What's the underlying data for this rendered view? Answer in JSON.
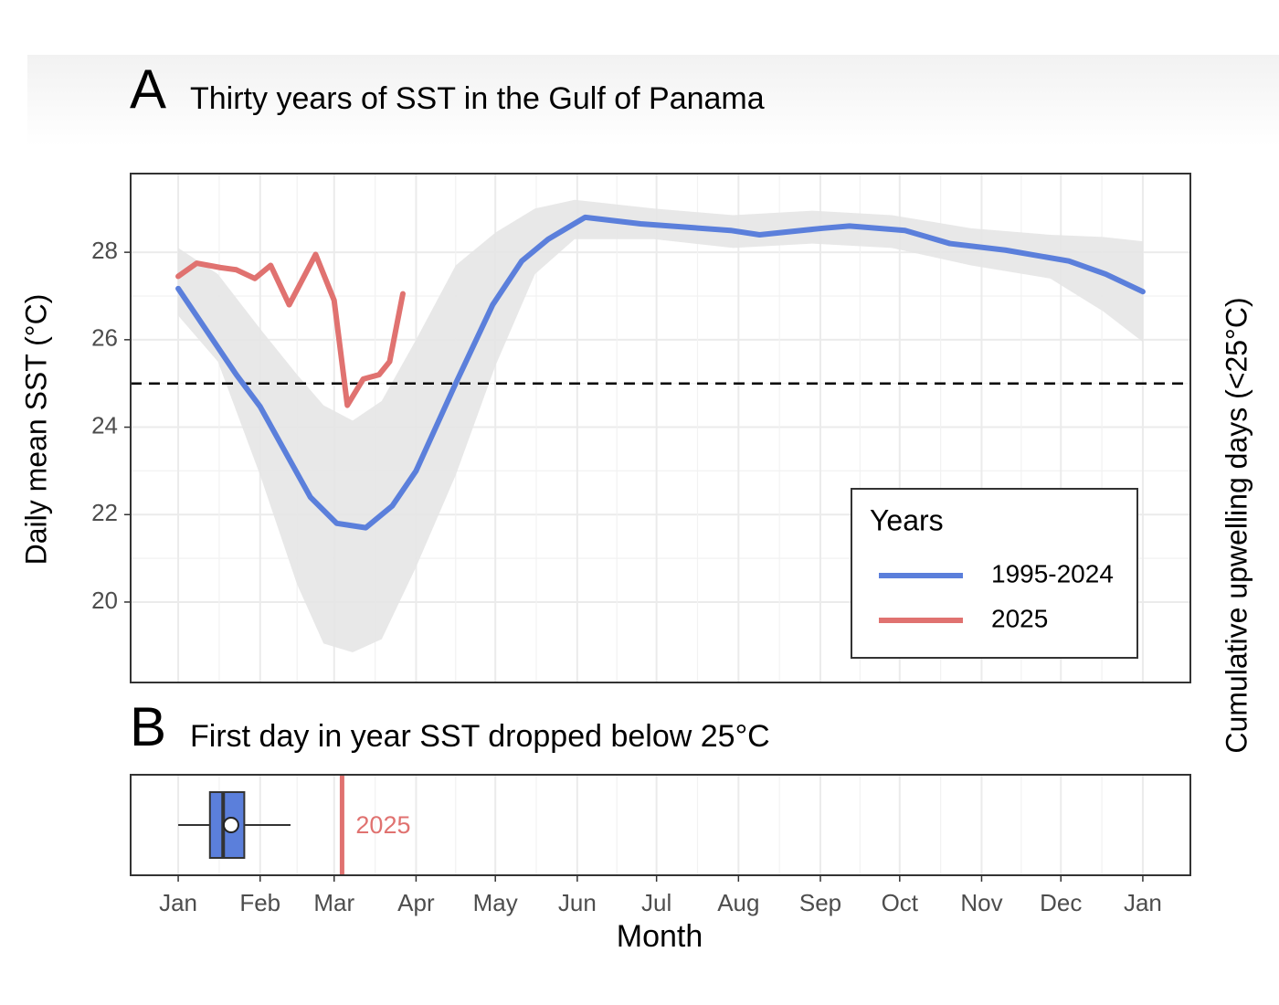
{
  "chart_data": [
    {
      "type": "line",
      "tag": "A",
      "title": "Thirty years of SST in the Gulf of Panama",
      "ylabel": "Daily mean SST (°C)",
      "y2label": "Cumulative upwelling days (<25°C)",
      "xlim": [
        -18,
        383
      ],
      "xticks": [
        0,
        31,
        59,
        90,
        120,
        151,
        181,
        212,
        243,
        273,
        304,
        334,
        365
      ],
      "ylim": [
        18.16,
        29.8
      ],
      "yticks": [
        20,
        22,
        24,
        26,
        28
      ],
      "grid": true,
      "minor_grid": true,
      "ribbon": {
        "color": "#e6e6e6",
        "x": [
          0,
          15,
          31,
          45,
          55,
          66,
          77,
          90,
          105,
          120,
          135,
          150,
          180,
          210,
          240,
          270,
          300,
          330,
          350,
          365
        ],
        "lower": [
          26.55,
          25.5,
          22.9,
          20.4,
          19.05,
          18.85,
          19.15,
          20.8,
          22.9,
          25.4,
          27.5,
          28.3,
          28.3,
          28.1,
          28.2,
          28.1,
          27.7,
          27.4,
          26.65,
          25.95
        ],
        "upper": [
          28.1,
          27.5,
          26.25,
          25.2,
          24.5,
          24.15,
          24.6,
          26.0,
          27.7,
          28.45,
          29.0,
          29.2,
          29.0,
          28.85,
          28.95,
          28.85,
          28.55,
          28.4,
          28.35,
          28.25
        ]
      },
      "hline": 25,
      "legend": {
        "title": "Years",
        "position": "bottom right"
      },
      "series": [
        {
          "name": "1995-2024",
          "color": "#5b7fdb",
          "x": [
            0,
            22,
            31,
            50,
            60,
            71,
            81,
            90,
            105,
            119,
            130,
            140,
            154,
            175,
            209,
            220,
            244,
            254,
            275,
            292,
            313,
            337,
            351,
            365
          ],
          "values": [
            27.17,
            25.2,
            24.47,
            22.4,
            21.8,
            21.7,
            22.2,
            23.0,
            25.0,
            26.8,
            27.8,
            28.3,
            28.8,
            28.65,
            28.5,
            28.4,
            28.55,
            28.6,
            28.5,
            28.2,
            28.05,
            27.8,
            27.5,
            27.1
          ]
        },
        {
          "name": "2025",
          "color": "#e07270",
          "x": [
            0,
            7,
            16,
            22,
            29,
            35,
            42,
            52,
            59,
            64,
            70,
            76,
            80,
            85
          ],
          "values": [
            27.45,
            27.75,
            27.65,
            27.6,
            27.4,
            27.7,
            26.8,
            27.95,
            26.9,
            24.5,
            25.1,
            25.2,
            25.5,
            27.05
          ]
        }
      ]
    },
    {
      "type": "box",
      "tag": "B",
      "title": "First day in year SST dropped below 25°C",
      "xlabel": "Month",
      "xlim": [
        -18,
        383
      ],
      "grid": true,
      "minor_grid": true,
      "xticks": [
        {
          "value": 0,
          "label": "Jan"
        },
        {
          "value": 31,
          "label": "Feb"
        },
        {
          "value": 59,
          "label": "Mar"
        },
        {
          "value": 90,
          "label": "Apr"
        },
        {
          "value": 120,
          "label": "May"
        },
        {
          "value": 151,
          "label": "Jun"
        },
        {
          "value": 181,
          "label": "Jul"
        },
        {
          "value": 212,
          "label": "Aug"
        },
        {
          "value": 243,
          "label": "Sep"
        },
        {
          "value": 273,
          "label": "Oct"
        },
        {
          "value": 304,
          "label": "Nov"
        },
        {
          "value": 334,
          "label": "Dec"
        },
        {
          "value": 365,
          "label": "Jan"
        }
      ],
      "box": {
        "whislo": 0,
        "q1": 12,
        "med": 17,
        "q3": 25,
        "whishi": 42.5,
        "mean": 20,
        "color": "#5b7fdb"
      },
      "vline": {
        "value": 62,
        "label": "2025",
        "color": "#e07270"
      }
    }
  ]
}
